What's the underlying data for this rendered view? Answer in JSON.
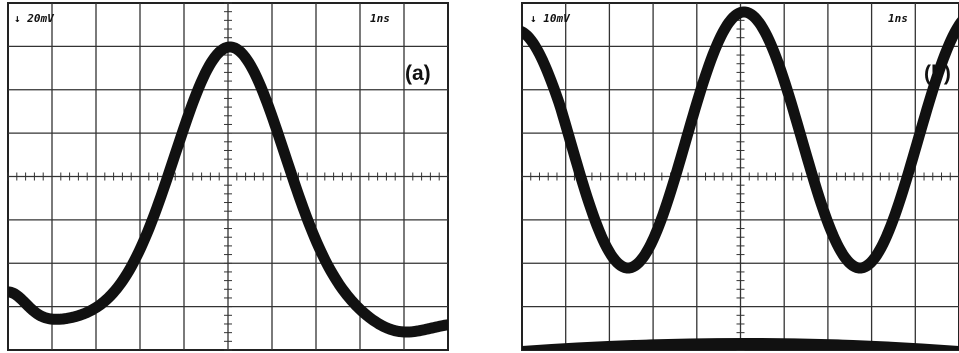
{
  "panels": [
    {
      "scale": "↓ 20mV",
      "time": "1ns",
      "label": "(a)"
    },
    {
      "scale": "↓ 10mV",
      "time": "1ns",
      "label": "(b)"
    }
  ]
}
